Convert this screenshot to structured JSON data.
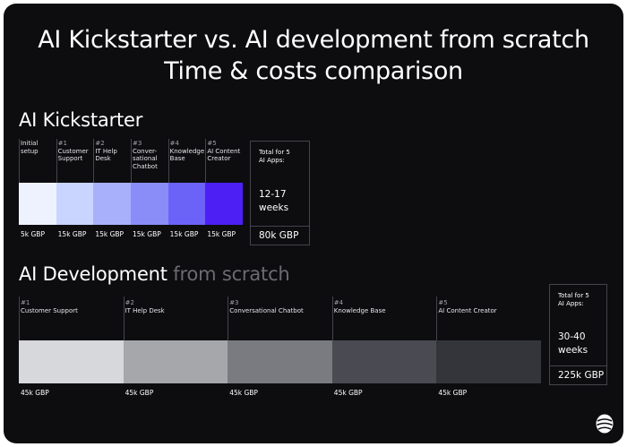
{
  "title_line1": "AI Kickstarter vs. AI development from scratch",
  "title_line2": "Time & costs comparison",
  "colors": {
    "background": "#0d0d10",
    "kickstarter_bars": [
      "#eef2ff",
      "#c9d4ff",
      "#a9b0fb",
      "#8a8cf8",
      "#6b63f8",
      "#4d1ff5"
    ],
    "scratch_bars": [
      "#d7d8db",
      "#a6a7ab",
      "#7a7b80",
      "#4a4b52",
      "#34353b"
    ]
  },
  "chart_data": [
    {
      "type": "bar",
      "orientation": "horizontal-stacked",
      "title": "AI Kickstarter",
      "title_muted": "",
      "currency": "GBP",
      "steps": [
        {
          "num": "",
          "label": "Initial setup",
          "cost": 5,
          "cost_label": "5k GBP"
        },
        {
          "num": "#1",
          "label": "Customer Support",
          "cost": 15,
          "cost_label": "15k GBP"
        },
        {
          "num": "#2",
          "label": "IT Help Desk",
          "cost": 15,
          "cost_label": "15k GBP"
        },
        {
          "num": "#3",
          "label": "Conver-sational Chatbot",
          "cost": 15,
          "cost_label": "15k GBP"
        },
        {
          "num": "#4",
          "label": "Knowledge Base",
          "cost": 15,
          "cost_label": "15k GBP"
        },
        {
          "num": "#5",
          "label": "AI Content Creator",
          "cost": 15,
          "cost_label": "15k GBP"
        }
      ],
      "total": {
        "heading_line1": "Total for 5",
        "heading_line2": "AI Apps:",
        "weeks_line1": "12-17",
        "weeks_line2": "weeks",
        "cost": "80k GBP"
      }
    },
    {
      "type": "bar",
      "orientation": "horizontal-stacked",
      "title": "AI Development",
      "title_muted": "from scratch",
      "currency": "GBP",
      "steps": [
        {
          "num": "#1",
          "label": "Customer Support",
          "cost": 45,
          "cost_label": "45k GBP"
        },
        {
          "num": "#2",
          "label": "IT Help Desk",
          "cost": 45,
          "cost_label": "45k GBP"
        },
        {
          "num": "#3",
          "label": "Conversational Chatbot",
          "cost": 45,
          "cost_label": "45k GBP"
        },
        {
          "num": "#4",
          "label": "Knowledge Base",
          "cost": 45,
          "cost_label": "45k GBP"
        },
        {
          "num": "#5",
          "label": "AI Content Creator",
          "cost": 45,
          "cost_label": "45k GBP"
        }
      ],
      "total": {
        "heading_line1": "Total for 5",
        "heading_line2": "AI Apps:",
        "weeks_line1": "30-40",
        "weeks_line2": "weeks",
        "cost": "225k GBP"
      }
    }
  ]
}
